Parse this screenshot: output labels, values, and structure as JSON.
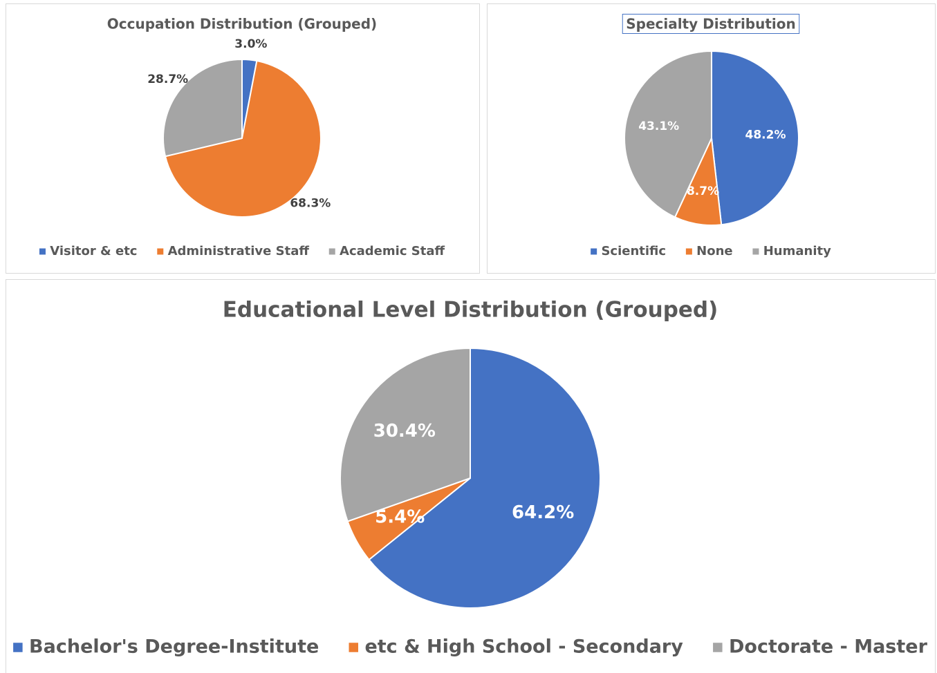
{
  "chart_data": [
    {
      "type": "pie",
      "title": "Occupation Distribution (Grouped)",
      "categories": [
        "Visitor & etc",
        "Administrative Staff",
        "Academic Staff"
      ],
      "values": [
        3.0,
        68.3,
        28.7
      ],
      "value_labels": [
        "3.0%",
        "68.3%",
        "28.7%"
      ],
      "colors": [
        "#4472c4",
        "#ed7d31",
        "#a5a5a5"
      ],
      "label_position": "outside",
      "legend": "bottom"
    },
    {
      "type": "pie",
      "title": "Specialty Distribution",
      "categories": [
        "Scientific",
        "None",
        "Humanity"
      ],
      "values": [
        48.2,
        8.7,
        43.1
      ],
      "value_labels": [
        "48.2%",
        "8.7%",
        "43.1%"
      ],
      "colors": [
        "#4472c4",
        "#ed7d31",
        "#a5a5a5"
      ],
      "label_position": "inside",
      "legend": "bottom"
    },
    {
      "type": "pie",
      "title": "Educational Level Distribution (Grouped)",
      "categories": [
        "Bachelor's Degree-Institute",
        "etc & High School - Secondary",
        "Doctorate - Master"
      ],
      "values": [
        64.2,
        5.4,
        30.4
      ],
      "value_labels": [
        "64.2%",
        "5.4%",
        "30.4%"
      ],
      "colors": [
        "#4472c4",
        "#ed7d31",
        "#a5a5a5"
      ],
      "label_position": "inside",
      "legend": "bottom"
    }
  ]
}
